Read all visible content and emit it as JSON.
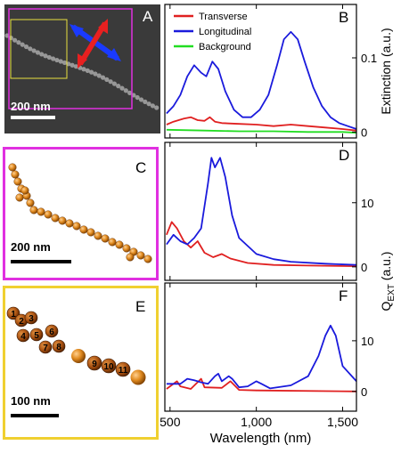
{
  "chart_data": [
    {
      "type": "line",
      "panel": "B",
      "ylabel": "Extinction (a.u.)",
      "xlim": [
        470,
        1580
      ],
      "xticks": [
        500,
        {
          "value": 1000,
          "label": "1,000"
        },
        {
          "value": 1500,
          "label": "1,500"
        }
      ],
      "ylim": [
        -0.008,
        0.172
      ],
      "yticks": [
        0,
        0.1
      ],
      "legend": "upper-left",
      "series": [
        {
          "name": "Transverse",
          "color": "#e02020",
          "x": [
            480,
            520,
            580,
            620,
            660,
            700,
            730,
            760,
            800,
            900,
            1000,
            1100,
            1200,
            1300,
            1400,
            1500,
            1580
          ],
          "values": [
            0.01,
            0.014,
            0.018,
            0.02,
            0.016,
            0.015,
            0.02,
            0.014,
            0.012,
            0.011,
            0.01,
            0.008,
            0.01,
            0.008,
            0.006,
            0.004,
            0.002
          ]
        },
        {
          "name": "Longitudinal",
          "color": "#1a1adc",
          "x": [
            480,
            520,
            560,
            600,
            640,
            680,
            710,
            745,
            780,
            820,
            870,
            920,
            970,
            1020,
            1070,
            1120,
            1160,
            1200,
            1240,
            1280,
            1330,
            1380,
            1430,
            1480,
            1530,
            1580
          ],
          "values": [
            0.025,
            0.035,
            0.05,
            0.075,
            0.09,
            0.08,
            0.075,
            0.095,
            0.085,
            0.055,
            0.03,
            0.02,
            0.02,
            0.03,
            0.05,
            0.09,
            0.125,
            0.135,
            0.125,
            0.095,
            0.06,
            0.035,
            0.02,
            0.012,
            0.008,
            0.004
          ]
        },
        {
          "name": "Background",
          "color": "#22dd22",
          "x": [
            480,
            700,
            900,
            1100,
            1300,
            1500,
            1580
          ],
          "values": [
            0.003,
            0.002,
            0.001,
            0.001,
            0.0,
            0.0,
            -0.001
          ]
        }
      ]
    },
    {
      "type": "line",
      "panel": "D",
      "ylabel": [
        "Q",
        "EXT",
        " (a.u.)"
      ],
      "xlim": [
        470,
        1580
      ],
      "xticks": [
        500,
        {
          "value": 1000,
          "label": "1,000"
        },
        {
          "value": 1500,
          "label": "1,500"
        }
      ],
      "ylim": [
        -2.1,
        19.4
      ],
      "yticks": [
        0,
        10
      ],
      "series": [
        {
          "name": "Transverse",
          "color": "#e02020",
          "x": [
            480,
            510,
            540,
            580,
            620,
            660,
            700,
            750,
            800,
            850,
            950,
            1100,
            1300,
            1580
          ],
          "values": [
            5,
            7,
            6,
            4,
            3,
            4,
            2.2,
            1.5,
            2,
            1.3,
            0.6,
            0.3,
            0.2,
            0.1
          ]
        },
        {
          "name": "Longitudinal",
          "color": "#1a1adc",
          "x": [
            480,
            520,
            560,
            600,
            640,
            680,
            720,
            740,
            760,
            790,
            820,
            860,
            900,
            1000,
            1100,
            1200,
            1400,
            1580
          ],
          "values": [
            3.5,
            5,
            4,
            3.5,
            4.5,
            6,
            13,
            17,
            15.5,
            17,
            14,
            8,
            4.5,
            2,
            1.2,
            0.8,
            0.5,
            0.3
          ]
        }
      ]
    },
    {
      "type": "line",
      "panel": "F",
      "xlabel": "Wavelength (nm)",
      "xlim": [
        470,
        1580
      ],
      "xticks": [
        500,
        {
          "value": 1000,
          "label": "1,000"
        },
        {
          "value": 1500,
          "label": "1,500"
        }
      ],
      "ylim": [
        -3.9,
        21.4
      ],
      "yticks": [
        0,
        10
      ],
      "series": [
        {
          "name": "Transverse",
          "color": "#e02020",
          "x": [
            480,
            540,
            560,
            620,
            680,
            700,
            800,
            850,
            900,
            1000,
            1580
          ],
          "values": [
            0.5,
            2,
            1,
            0.5,
            2.5,
            0.8,
            0.7,
            2,
            0.3,
            0.2,
            0
          ]
        },
        {
          "name": "Longitudinal",
          "color": "#1a1adc",
          "x": [
            480,
            560,
            600,
            640,
            680,
            720,
            760,
            780,
            800,
            840,
            860,
            900,
            950,
            1000,
            1030,
            1080,
            1200,
            1300,
            1360,
            1400,
            1430,
            1460,
            1500,
            1580
          ],
          "values": [
            1.5,
            1.5,
            2.5,
            2.2,
            1.8,
            1.5,
            3,
            3.5,
            2,
            3,
            2.5,
            0.8,
            1,
            2,
            1.5,
            0.6,
            1.2,
            3,
            7,
            11,
            13,
            11,
            5,
            2
          ]
        }
      ]
    }
  ],
  "image_panels": {
    "A": {
      "label": "A",
      "scale_bar": "200 nm"
    },
    "C": {
      "label": "C",
      "scale_bar": "200 nm"
    },
    "E": {
      "label": "E",
      "scale_bar": "100 nm",
      "particle_labels": [
        "1",
        "2",
        "3",
        "4",
        "5",
        "6",
        "7",
        "8",
        "9",
        "10",
        "11"
      ]
    }
  }
}
